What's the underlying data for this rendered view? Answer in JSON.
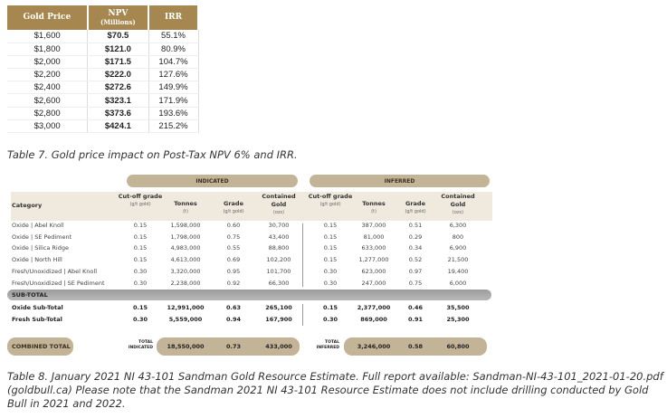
{
  "table7": {
    "headers": [
      "Gold Price",
      "NPV",
      "(Millions)",
      "IRR"
    ],
    "rows": [
      [
        "$1,600",
        "$70.5",
        "55.1%"
      ],
      [
        "$1,800",
        "$121.0",
        "80.9%"
      ],
      [
        "$2,000",
        "$171.5",
        "104.7%"
      ],
      [
        "$2,200",
        "$222.0",
        "127.6%"
      ],
      [
        "$2,400",
        "$272.6",
        "149.9%"
      ],
      [
        "$2,600",
        "$323.1",
        "171.9%"
      ],
      [
        "$2,800",
        "$373.6",
        "193.6%"
      ],
      [
        "$3,000",
        "$424.1",
        "215.2%"
      ]
    ],
    "caption": "Table 7. Gold price impact on Post-Tax NPV 6% and IRR."
  },
  "table8": {
    "indicated": "INDICATED",
    "inferred": "INFERRED",
    "category_header": "Category",
    "col_headers": [
      {
        "t": "Cut-off grade",
        "u": "(g/t gold)"
      },
      {
        "t": "Tonnes",
        "u": "(t)"
      },
      {
        "t": "Grade",
        "u": "(g/t gold)"
      },
      {
        "t": "Contained Gold",
        "u": "(ozs)"
      }
    ],
    "rows": [
      [
        "Oxide | Abel Knoll",
        "0.15",
        "1,598,000",
        "0.60",
        "30,700",
        "0.15",
        "387,000",
        "0.51",
        "6,300"
      ],
      [
        "Oxide | SE Pediment",
        "0.15",
        "1,798,000",
        "0.75",
        "43,400",
        "0.15",
        "81,000",
        "0.29",
        "800"
      ],
      [
        "Oxide | Silica Ridge",
        "0.15",
        "4,983,000",
        "0.55",
        "88,800",
        "0.15",
        "633,000",
        "0.34",
        "6,900"
      ],
      [
        "Oxide | North Hill",
        "0.15",
        "4,613,000",
        "0.69",
        "102,200",
        "0.15",
        "1,277,000",
        "0.52",
        "21,500"
      ],
      [
        "Fresh/Unoxidized | Abel Knoll",
        "0.30",
        "3,320,000",
        "0.95",
        "101,700",
        "0.30",
        "623,000",
        "0.97",
        "19,400"
      ],
      [
        "Fresh/Unoxidized | SE Pediment",
        "0.30",
        "2,238,000",
        "0.92",
        "66,300",
        "0.30",
        "247,000",
        "0.75",
        "6,000"
      ]
    ],
    "subtotal_label": "SUB-TOTAL",
    "subtotals": [
      [
        "Oxide Sub-Total",
        "0.15",
        "12,991,000",
        "0.63",
        "265,100",
        "0.15",
        "2,377,000",
        "0.46",
        "35,500"
      ],
      [
        "Fresh Sub-Total",
        "0.30",
        "5,559,000",
        "0.94",
        "167,900",
        "0.30",
        "869,000",
        "0.91",
        "25,300"
      ]
    ],
    "combined_label": "COMBINED TOTAL",
    "total_indicated_label": "TOTAL INDICATED",
    "total_indicated": [
      "18,550,000",
      "0.73",
      "433,000"
    ],
    "total_inferred_label": "TOTAL INFERRED",
    "total_inferred": [
      "3,246,000",
      "0.58",
      "60,800"
    ],
    "caption": "Table 8. January 2021 NI 43-101 Sandman Gold Resource Estimate. Full report available: Sandman-NI-43-101_2021-01-20.pdf (goldbull.ca) Please note that the Sandman 2021 NI 43-101 Resource Estimate does not include drilling conducted by Gold Bull in 2021 and 2022."
  }
}
